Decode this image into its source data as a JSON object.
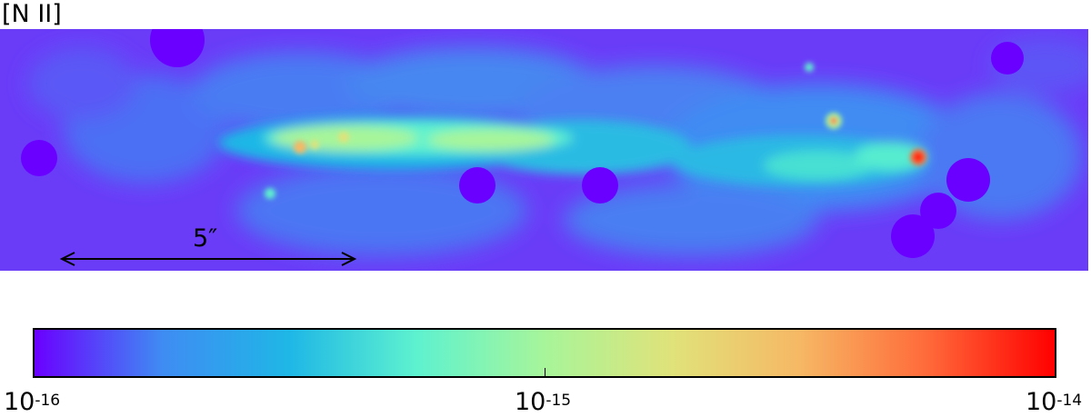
{
  "panel_label": "[N II]",
  "scale_bar": {
    "label": "5″"
  },
  "colorbar": {
    "scale": "log",
    "colormap": "rainbow",
    "colors": [
      "#6a00ff",
      "#3f8cf3",
      "#1fb7e6",
      "#5ef2cf",
      "#a7f59a",
      "#e0e27a",
      "#f6b864",
      "#ff6a3a",
      "#ff0000"
    ],
    "ticks": [
      {
        "base": "10",
        "exponent": "-16"
      },
      {
        "base": "10",
        "exponent": "-15"
      },
      {
        "base": "10",
        "exponent": "-14"
      }
    ]
  }
}
